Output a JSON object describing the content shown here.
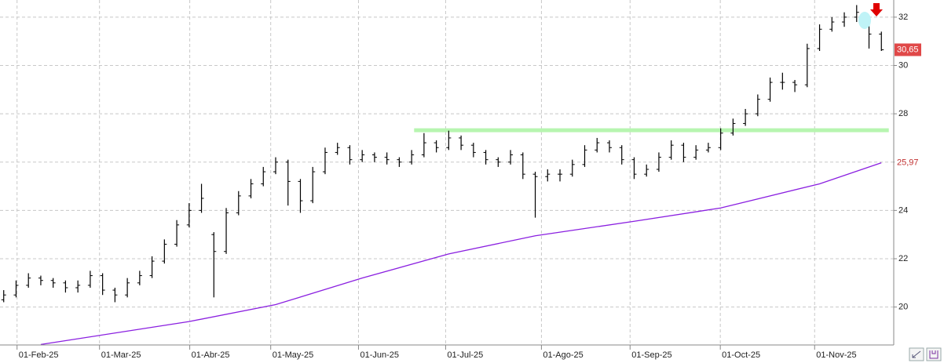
{
  "chart_data": {
    "type": "ohlc",
    "open": [
      20.3,
      20.5,
      20.9,
      21.2,
      21.1,
      21.0,
      20.8,
      20.9,
      21.3,
      20.7,
      20.5,
      21.0,
      21.3,
      21.9,
      22.6,
      23.4,
      24.0,
      23.0,
      22.3,
      23.9,
      24.6,
      25.1,
      25.6,
      26.0,
      25.2,
      24.4,
      25.6,
      26.4,
      26.6,
      26.1,
      26.3,
      26.2,
      26.1,
      26.0,
      26.3,
      26.8,
      26.6,
      27.0,
      26.7,
      26.4,
      26.1,
      26.0,
      26.3,
      25.5,
      25.4,
      25.5,
      25.5,
      25.9,
      26.5,
      26.8,
      26.6,
      26.1,
      25.5,
      25.7,
      26.2,
      26.7,
      26.2,
      26.5,
      26.6,
      27.2,
      27.6,
      28.0,
      28.6,
      29.3,
      29.3,
      29.2,
      30.7,
      31.5,
      31.8,
      32.0,
      31.6,
      31.3
    ],
    "high": [
      20.7,
      21.1,
      21.4,
      21.3,
      21.2,
      21.1,
      21.1,
      21.5,
      21.4,
      20.8,
      21.2,
      21.5,
      22.1,
      22.8,
      23.6,
      24.3,
      25.1,
      23.1,
      24.1,
      24.8,
      25.3,
      25.8,
      26.2,
      26.1,
      25.3,
      25.8,
      26.6,
      26.8,
      26.7,
      26.5,
      26.4,
      26.4,
      26.2,
      26.5,
      27.2,
      26.9,
      27.3,
      27.1,
      26.8,
      26.5,
      26.2,
      26.5,
      26.4,
      25.6,
      25.7,
      25.7,
      26.1,
      26.7,
      27.0,
      26.9,
      26.7,
      26.2,
      25.9,
      26.4,
      26.9,
      26.8,
      26.7,
      26.8,
      27.4,
      27.8,
      28.2,
      28.8,
      29.5,
      29.7,
      29.4,
      30.9,
      31.7,
      32.0,
      32.2,
      32.5,
      31.7,
      31.4
    ],
    "low": [
      20.2,
      20.4,
      20.8,
      20.9,
      20.8,
      20.6,
      20.6,
      20.8,
      20.5,
      20.2,
      20.4,
      20.9,
      21.2,
      21.8,
      22.5,
      23.3,
      23.9,
      20.4,
      22.2,
      23.8,
      24.5,
      25.0,
      25.5,
      24.2,
      23.9,
      24.3,
      25.5,
      26.3,
      25.9,
      26.0,
      26.0,
      25.9,
      25.8,
      25.9,
      26.2,
      26.4,
      26.5,
      26.5,
      26.2,
      25.9,
      25.8,
      25.9,
      25.3,
      23.7,
      25.2,
      25.2,
      25.4,
      25.8,
      26.4,
      26.4,
      25.9,
      25.3,
      25.4,
      25.6,
      26.1,
      26.0,
      26.1,
      26.4,
      26.5,
      27.1,
      27.5,
      27.9,
      28.5,
      29.0,
      28.9,
      29.1,
      30.6,
      31.4,
      31.6,
      31.8,
      30.7,
      30.6
    ],
    "close": [
      20.5,
      20.9,
      21.2,
      21.1,
      21.0,
      20.8,
      20.9,
      21.3,
      20.7,
      20.5,
      21.0,
      21.3,
      21.9,
      22.6,
      23.4,
      24.0,
      24.5,
      22.3,
      23.9,
      24.6,
      25.1,
      25.6,
      26.0,
      25.2,
      24.4,
      25.6,
      26.4,
      26.6,
      26.1,
      26.3,
      26.2,
      26.1,
      26.0,
      26.3,
      26.8,
      26.6,
      27.0,
      26.7,
      26.4,
      26.1,
      26.0,
      26.3,
      25.5,
      25.4,
      25.5,
      25.5,
      25.9,
      26.5,
      26.8,
      26.6,
      26.1,
      25.5,
      25.7,
      26.2,
      26.7,
      26.2,
      26.5,
      26.6,
      27.2,
      27.6,
      28.0,
      28.6,
      29.3,
      29.3,
      29.2,
      30.7,
      31.5,
      31.8,
      32.0,
      32.2,
      31.3,
      30.65
    ],
    "color": "#000000",
    "last_close_label": "30,65",
    "ma": {
      "color": "#8a1fe0",
      "x": [
        3,
        15,
        22,
        29,
        36,
        43,
        51,
        58,
        66,
        71
      ],
      "values": [
        18.45,
        19.4,
        20.1,
        21.2,
        22.2,
        22.95,
        23.55,
        24.1,
        25.1,
        25.97
      ],
      "last_label": "25,97"
    },
    "resistance": {
      "color": "#b7f5b0",
      "value": 27.32,
      "x": [
        33.2,
        71.6
      ]
    },
    "xlim": [
      -0.3,
      72.0
    ],
    "xticks": [
      {
        "value": 1.08,
        "label": "01-Feb-25"
      },
      {
        "value": 7.75,
        "label": "01-Mar-25"
      },
      {
        "value": 15.05,
        "label": "01-Abr-25"
      },
      {
        "value": 21.6,
        "label": "01-May-25"
      },
      {
        "value": 28.7,
        "label": "01-Jun-25"
      },
      {
        "value": 35.75,
        "label": "01-Jul-25"
      },
      {
        "value": 43.5,
        "label": "01-Ago-25"
      },
      {
        "value": 50.67,
        "label": "01-Sep-25"
      },
      {
        "value": 57.97,
        "label": "01-Oct-25"
      },
      {
        "value": 65.6,
        "label": "01-Nov-25"
      }
    ],
    "ylim": [
      18.43,
      32.71
    ],
    "yticks": [
      20,
      22,
      24,
      26,
      28,
      30,
      32
    ],
    "grid": true
  }
}
